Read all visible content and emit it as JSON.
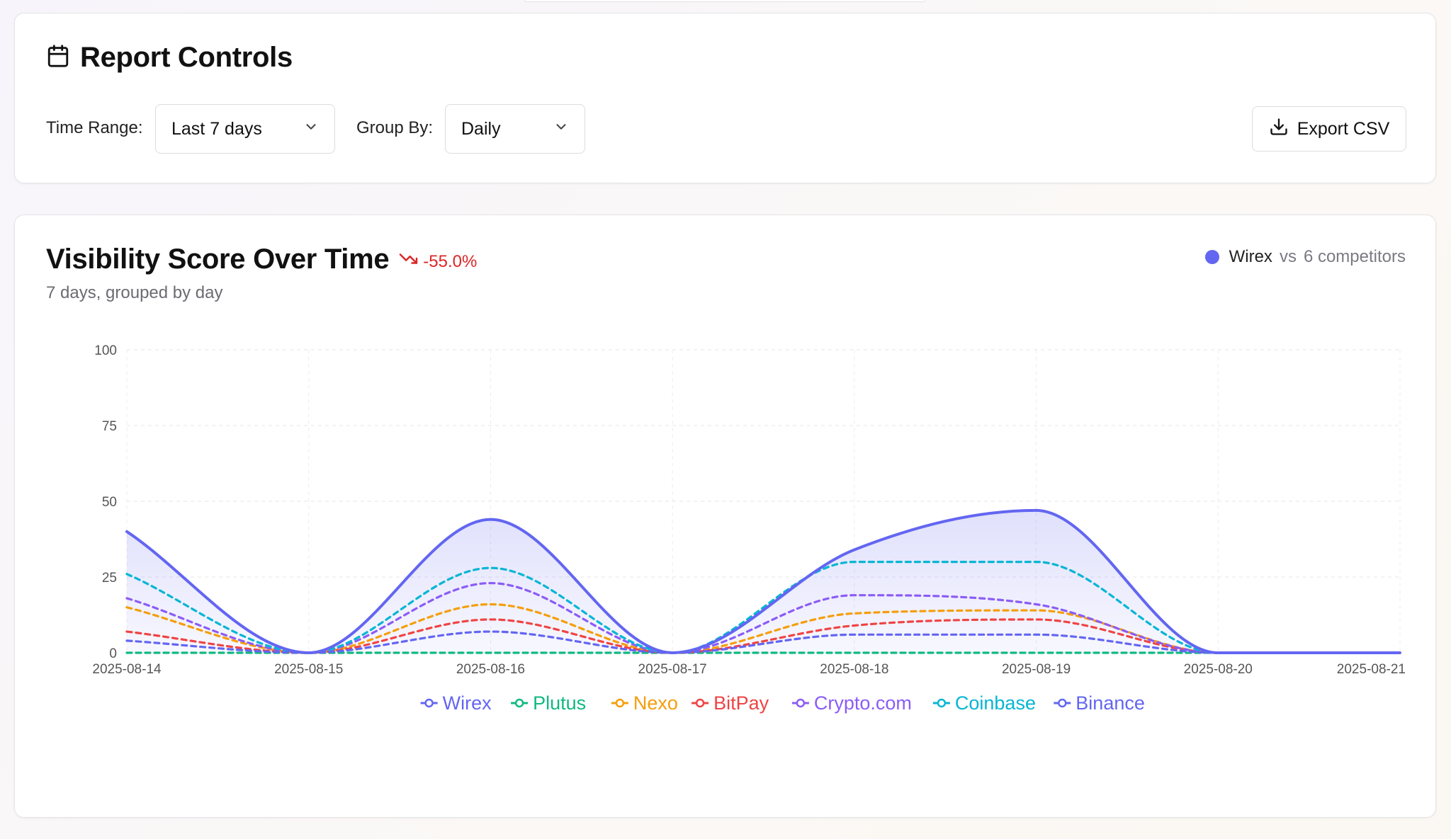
{
  "controls": {
    "title": "Report Controls",
    "icon": "calendar-icon",
    "time_range_label": "Time Range:",
    "time_range_value": "Last 7 days",
    "group_by_label": "Group By:",
    "group_by_value": "Daily",
    "export_label": "Export CSV"
  },
  "chart_header": {
    "title": "Visibility Score Over Time",
    "trend_value": "-55.0%",
    "subtitle": "7 days, grouped by day",
    "brand": "Wirex",
    "vs_label": "vs",
    "competitors_label": "6 competitors"
  },
  "colors": {
    "accent": "#6366f1",
    "negative": "#dc2626"
  },
  "chart_data": {
    "type": "line",
    "x": [
      "2025-08-14",
      "2025-08-15",
      "2025-08-16",
      "2025-08-17",
      "2025-08-18",
      "2025-08-19",
      "2025-08-20",
      "2025-08-21"
    ],
    "ylim": [
      0,
      100
    ],
    "yticks": [
      0,
      25,
      50,
      75,
      100
    ],
    "grid": true,
    "legend_position": "bottom",
    "series": [
      {
        "name": "Wirex",
        "color": "#6366f1",
        "style": "solid",
        "fill": true,
        "values": [
          40,
          0,
          44,
          0,
          34,
          47,
          0,
          0
        ]
      },
      {
        "name": "Plutus",
        "color": "#10b981",
        "style": "dashed",
        "values": [
          0,
          0,
          0,
          0,
          0,
          0,
          0,
          0
        ]
      },
      {
        "name": "Nexo",
        "color": "#f59e0b",
        "style": "dashed",
        "values": [
          15,
          0,
          16,
          0,
          13,
          14,
          0,
          0
        ]
      },
      {
        "name": "BitPay",
        "color": "#ef4444",
        "style": "dashed",
        "values": [
          7,
          0,
          11,
          0,
          9,
          11,
          0,
          0
        ]
      },
      {
        "name": "Crypto.com",
        "color": "#8b5cf6",
        "style": "dashed",
        "values": [
          18,
          0,
          23,
          0,
          19,
          16,
          0,
          0
        ]
      },
      {
        "name": "Coinbase",
        "color": "#06b6d4",
        "style": "dashed",
        "values": [
          26,
          0,
          28,
          0,
          30,
          30,
          0,
          0
        ]
      },
      {
        "name": "Binance",
        "color": "#6366f1",
        "style": "dashed",
        "values": [
          4,
          0,
          7,
          0,
          6,
          6,
          0,
          0
        ]
      }
    ]
  }
}
